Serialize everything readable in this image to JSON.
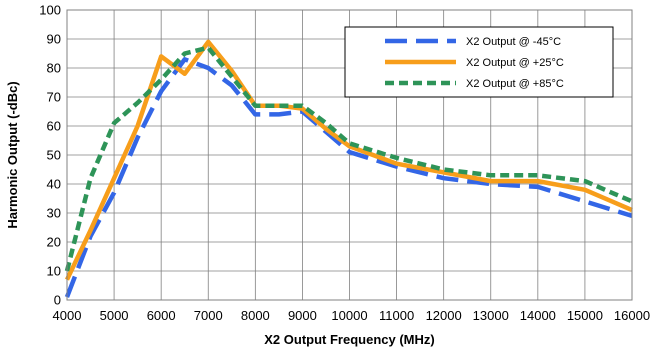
{
  "chart_data": {
    "type": "line",
    "xlabel": "X2 Output Frequency (MHz)",
    "ylabel": "Harmonic Output (-dBc)",
    "xlim": [
      4000,
      16000
    ],
    "ylim": [
      0,
      100
    ],
    "xticks": [
      4000,
      5000,
      6000,
      7000,
      8000,
      9000,
      10000,
      11000,
      12000,
      13000,
      14000,
      15000,
      16000
    ],
    "yticks": [
      0,
      10,
      20,
      30,
      40,
      50,
      60,
      70,
      80,
      90,
      100
    ],
    "grid": true,
    "legend": "top-right",
    "series": [
      {
        "name": "X2 Output @ -45°C",
        "color": "#3366e6",
        "dash": "long-dash",
        "x": [
          4000,
          4500,
          5000,
          5500,
          6000,
          6500,
          7000,
          7500,
          8000,
          8500,
          9000,
          9500,
          10000,
          11000,
          12000,
          13000,
          14000,
          15000,
          16000
        ],
        "y": [
          1,
          22,
          37,
          56,
          72,
          83,
          80,
          74,
          64,
          64,
          65,
          58,
          51,
          46,
          42,
          40,
          39,
          34,
          29
        ]
      },
      {
        "name": "X2 Output @ +25°C",
        "color": "#f79e1b",
        "dash": "solid",
        "x": [
          4000,
          4500,
          5000,
          5500,
          6000,
          6500,
          7000,
          7500,
          8000,
          8500,
          9000,
          9500,
          10000,
          11000,
          12000,
          13000,
          14000,
          15000,
          16000
        ],
        "y": [
          7,
          24,
          42,
          60,
          84,
          78,
          89,
          79,
          67,
          67,
          66,
          59,
          53,
          47,
          44,
          41,
          41,
          38,
          31
        ]
      },
      {
        "name": "X2 Output @ +85°C",
        "color": "#2e9458",
        "dash": "short-dash",
        "x": [
          4000,
          4500,
          5000,
          5500,
          6000,
          6500,
          7000,
          7500,
          8000,
          8500,
          9000,
          9500,
          10000,
          11000,
          12000,
          13000,
          14000,
          15000,
          16000
        ],
        "y": [
          10,
          42,
          61,
          68,
          76,
          85,
          87,
          77,
          67,
          67,
          67,
          61,
          54,
          49,
          45,
          43,
          43,
          41,
          34
        ]
      }
    ]
  }
}
